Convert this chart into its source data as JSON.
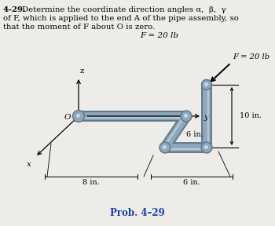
{
  "title_bold": "4–29.",
  "title_line1": "4–29.   Determine the coordinate direction angles α,  β,  γ",
  "title_line2": "of F, which is applied to the end A of the pipe assembly, so",
  "title_line3": "that the moment of F about O is zero.",
  "F_label": "F = 20 lb",
  "prob_label": "Prob. 4–29",
  "dim_8": "8 in.",
  "dim_6a": "6 in.",
  "dim_6b": "6 in.",
  "dim_10": "10 in.",
  "axis_x": "x",
  "axis_y": "y",
  "axis_z": "z",
  "axis_O": "O",
  "bg_color": "#eeece8",
  "pipe_color": "#8fa8bc",
  "pipe_dark": "#607888",
  "pipe_light": "#c8dce8",
  "text_color": "#000000",
  "prob_color": "#1840a0"
}
